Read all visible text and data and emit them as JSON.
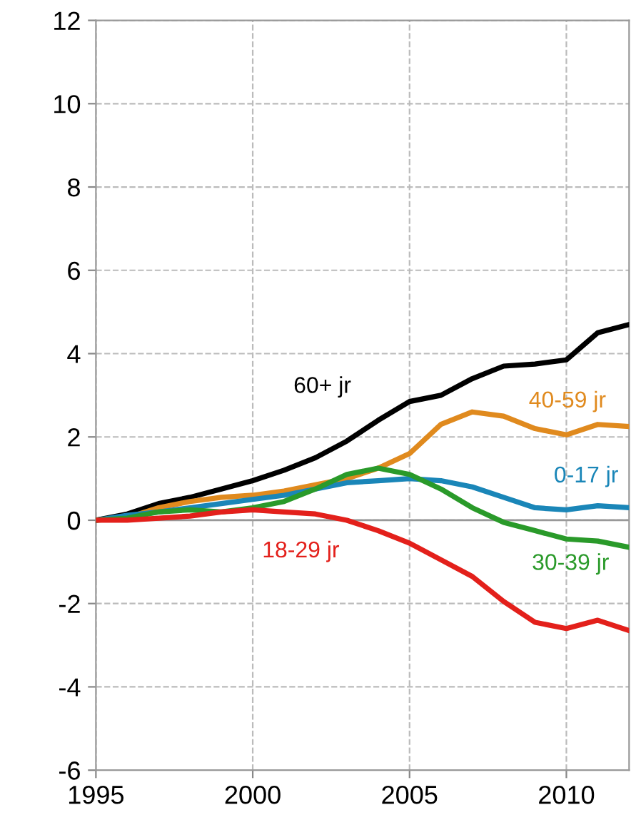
{
  "chart_data": {
    "type": "line",
    "x": [
      1995,
      1996,
      1997,
      1998,
      1999,
      2000,
      2001,
      2002,
      2003,
      2004,
      2005,
      2006,
      2007,
      2008,
      2009,
      2010,
      2011,
      2012
    ],
    "series": [
      {
        "name": "60+ jr",
        "color": "#000000",
        "values": [
          0,
          0.15,
          0.4,
          0.55,
          0.75,
          0.95,
          1.2,
          1.5,
          1.9,
          2.4,
          2.85,
          3.0,
          3.4,
          3.7,
          3.75,
          3.85,
          4.5,
          4.7
        ]
      },
      {
        "name": "40-59 jr",
        "color": "#e08a1e",
        "values": [
          0,
          0.06,
          0.3,
          0.45,
          0.55,
          0.6,
          0.7,
          0.85,
          1.0,
          1.25,
          1.6,
          2.3,
          2.6,
          2.5,
          2.2,
          2.05,
          2.3,
          2.25
        ]
      },
      {
        "name": "0-17 jr",
        "color": "#1a86b8",
        "values": [
          0,
          0.12,
          0.2,
          0.3,
          0.4,
          0.5,
          0.6,
          0.75,
          0.9,
          0.95,
          1.0,
          0.95,
          0.8,
          0.55,
          0.3,
          0.25,
          0.35,
          0.3
        ]
      },
      {
        "name": "30-39 jr",
        "color": "#2a9a2a",
        "values": [
          0,
          0.05,
          0.2,
          0.25,
          0.2,
          0.3,
          0.45,
          0.75,
          1.1,
          1.25,
          1.1,
          0.75,
          0.3,
          -0.05,
          -0.25,
          -0.45,
          -0.5,
          -0.65
        ]
      },
      {
        "name": "18-29 jr",
        "color": "#e3201b",
        "values": [
          0,
          0.0,
          0.05,
          0.1,
          0.2,
          0.25,
          0.2,
          0.15,
          0.0,
          -0.25,
          -0.55,
          -0.95,
          -1.35,
          -1.95,
          -2.45,
          -2.6,
          -2.4,
          -2.65
        ]
      }
    ],
    "xlim": [
      1995,
      2012
    ],
    "xticks": [
      1995,
      2000,
      2005,
      2010
    ],
    "ylim": [
      -6,
      12
    ],
    "yticks": [
      -6,
      -4,
      -2,
      0,
      2,
      4,
      6,
      8,
      10,
      12
    ],
    "grid": true,
    "legend": false,
    "marker": "none",
    "line_style": "solid"
  }
}
